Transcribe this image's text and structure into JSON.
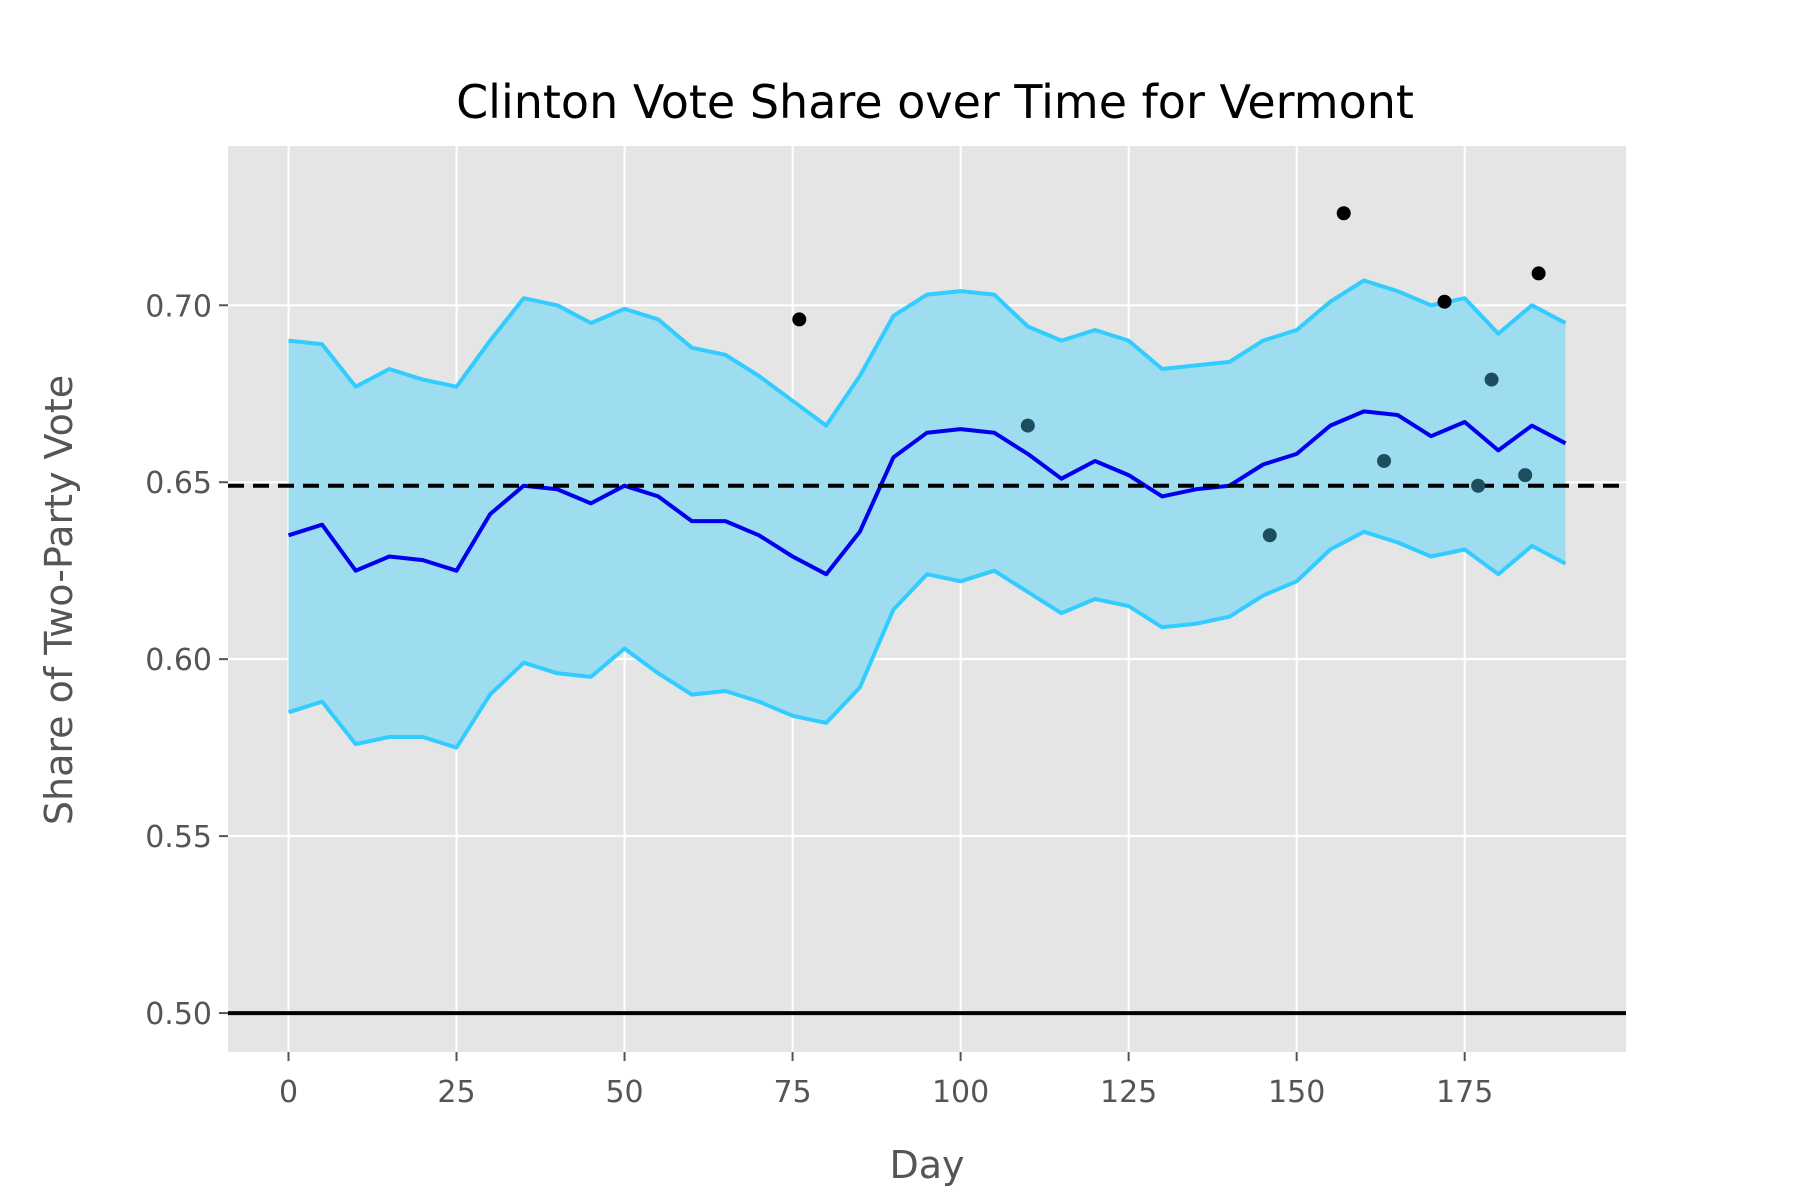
{
  "chart_data": {
    "type": "line",
    "title": "Clinton Vote Share over Time for Vermont",
    "xlabel": "Day",
    "ylabel": "Share of Two-Party Vote",
    "xlim": [
      -9,
      199
    ],
    "ylim": [
      0.489,
      0.745
    ],
    "xticks": [
      0,
      25,
      50,
      75,
      100,
      125,
      150,
      175
    ],
    "yticks": [
      0.5,
      0.55,
      0.6,
      0.65,
      0.7
    ],
    "xtick_labels": [
      "0",
      "25",
      "50",
      "75",
      "100",
      "125",
      "150",
      "175"
    ],
    "ytick_labels": [
      "0.50",
      "0.55",
      "0.60",
      "0.65",
      "0.70"
    ],
    "grid": true,
    "hlines": [
      {
        "y": 0.649,
        "style": "dashed",
        "color": "#000000"
      },
      {
        "y": 0.5,
        "style": "solid",
        "color": "#000000"
      }
    ],
    "colors": {
      "mean": "#0000ee",
      "band_edge": "#33ccff",
      "band_fill": "#9edcf0",
      "background": "#e5e5e5",
      "grid": "#ffffff",
      "poll_high": "#000000",
      "poll_near": "#1b4f5e"
    },
    "x": [
      0,
      5,
      10,
      15,
      20,
      25,
      30,
      35,
      40,
      45,
      50,
      55,
      60,
      65,
      70,
      75,
      80,
      85,
      90,
      95,
      100,
      105,
      110,
      115,
      120,
      125,
      130,
      135,
      140,
      145,
      150,
      155,
      160,
      165,
      170,
      175,
      180,
      185,
      190
    ],
    "series": [
      {
        "role": "mean",
        "values": [
          0.635,
          0.638,
          0.625,
          0.629,
          0.628,
          0.625,
          0.641,
          0.649,
          0.648,
          0.644,
          0.649,
          0.646,
          0.639,
          0.639,
          0.635,
          0.629,
          0.624,
          0.636,
          0.657,
          0.664,
          0.665,
          0.664,
          0.658,
          0.651,
          0.656,
          0.652,
          0.646,
          0.648,
          0.649,
          0.655,
          0.658,
          0.666,
          0.67,
          0.669,
          0.663,
          0.667,
          0.659,
          0.666,
          0.661
        ]
      },
      {
        "role": "upper",
        "values": [
          0.69,
          0.689,
          0.677,
          0.682,
          0.679,
          0.677,
          0.69,
          0.702,
          0.7,
          0.695,
          0.699,
          0.696,
          0.688,
          0.686,
          0.68,
          0.673,
          0.666,
          0.68,
          0.697,
          0.703,
          0.704,
          0.703,
          0.694,
          0.69,
          0.693,
          0.69,
          0.682,
          0.683,
          0.684,
          0.69,
          0.693,
          0.701,
          0.707,
          0.704,
          0.7,
          0.702,
          0.692,
          0.7,
          0.695
        ]
      },
      {
        "role": "lower",
        "values": [
          0.585,
          0.588,
          0.576,
          0.578,
          0.578,
          0.575,
          0.59,
          0.599,
          0.596,
          0.595,
          0.603,
          0.596,
          0.59,
          0.591,
          0.588,
          0.584,
          0.582,
          0.592,
          0.614,
          0.624,
          0.622,
          0.625,
          0.619,
          0.613,
          0.617,
          0.615,
          0.609,
          0.61,
          0.612,
          0.618,
          0.622,
          0.631,
          0.636,
          0.633,
          0.629,
          0.631,
          0.624,
          0.632,
          0.627
        ]
      }
    ],
    "points": [
      {
        "x": 76,
        "y": 0.696,
        "group": "high"
      },
      {
        "x": 110,
        "y": 0.666,
        "group": "near"
      },
      {
        "x": 146,
        "y": 0.635,
        "group": "near"
      },
      {
        "x": 157,
        "y": 0.726,
        "group": "high"
      },
      {
        "x": 163,
        "y": 0.656,
        "group": "near"
      },
      {
        "x": 172,
        "y": 0.701,
        "group": "high"
      },
      {
        "x": 177,
        "y": 0.649,
        "group": "near"
      },
      {
        "x": 179,
        "y": 0.679,
        "group": "near"
      },
      {
        "x": 184,
        "y": 0.652,
        "group": "near"
      },
      {
        "x": 186,
        "y": 0.709,
        "group": "high"
      }
    ]
  }
}
